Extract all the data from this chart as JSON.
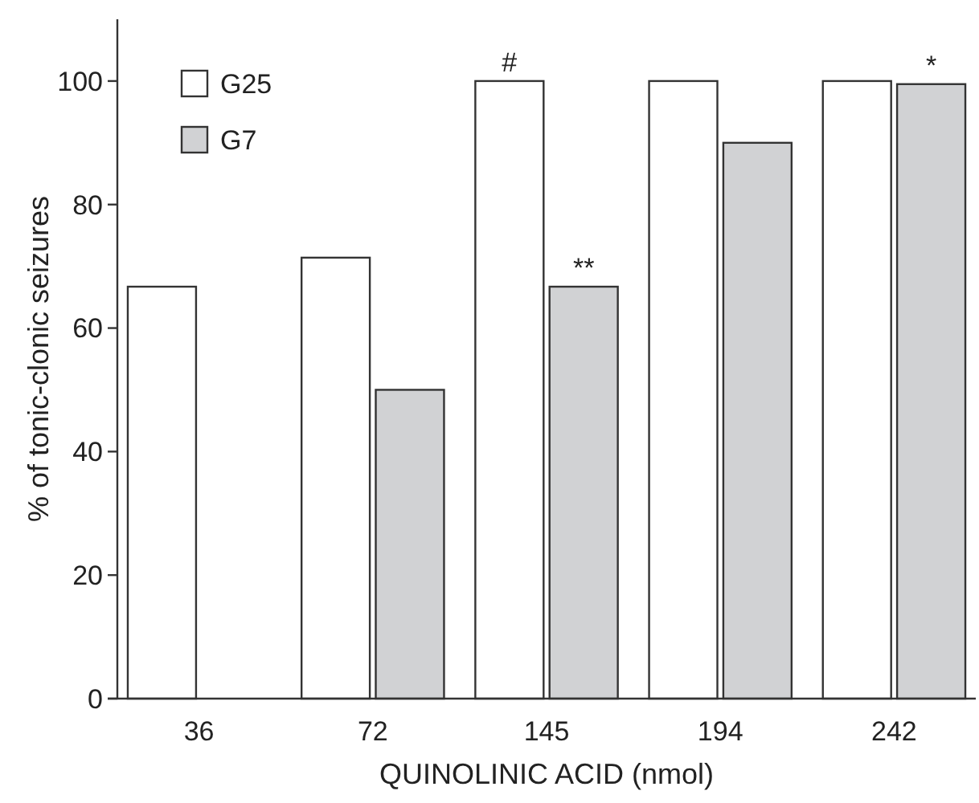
{
  "chart_data": {
    "type": "bar",
    "xlabel": "QUINOLINIC ACID (nmol)",
    "ylabel": "% of tonic-clonic seizures",
    "categories": [
      "36",
      "72",
      "145",
      "194",
      "242"
    ],
    "series": [
      {
        "name": "G25",
        "color": "#ffffff",
        "values": [
          66.7,
          71.4,
          100,
          100,
          100
        ]
      },
      {
        "name": "G7",
        "color": "#d1d2d4",
        "values": [
          null,
          50,
          66.7,
          90,
          99.5
        ]
      }
    ],
    "ylim": [
      0,
      110
    ],
    "yticks": [
      0,
      20,
      40,
      60,
      80,
      100
    ],
    "grid": false,
    "legend": "top left",
    "annotations": [
      {
        "text": "#",
        "x": "145",
        "y": 100
      },
      {
        "text": "**",
        "x": "145",
        "y": 66.7
      },
      {
        "text": "*",
        "x": "242",
        "y": 99.5
      }
    ]
  }
}
